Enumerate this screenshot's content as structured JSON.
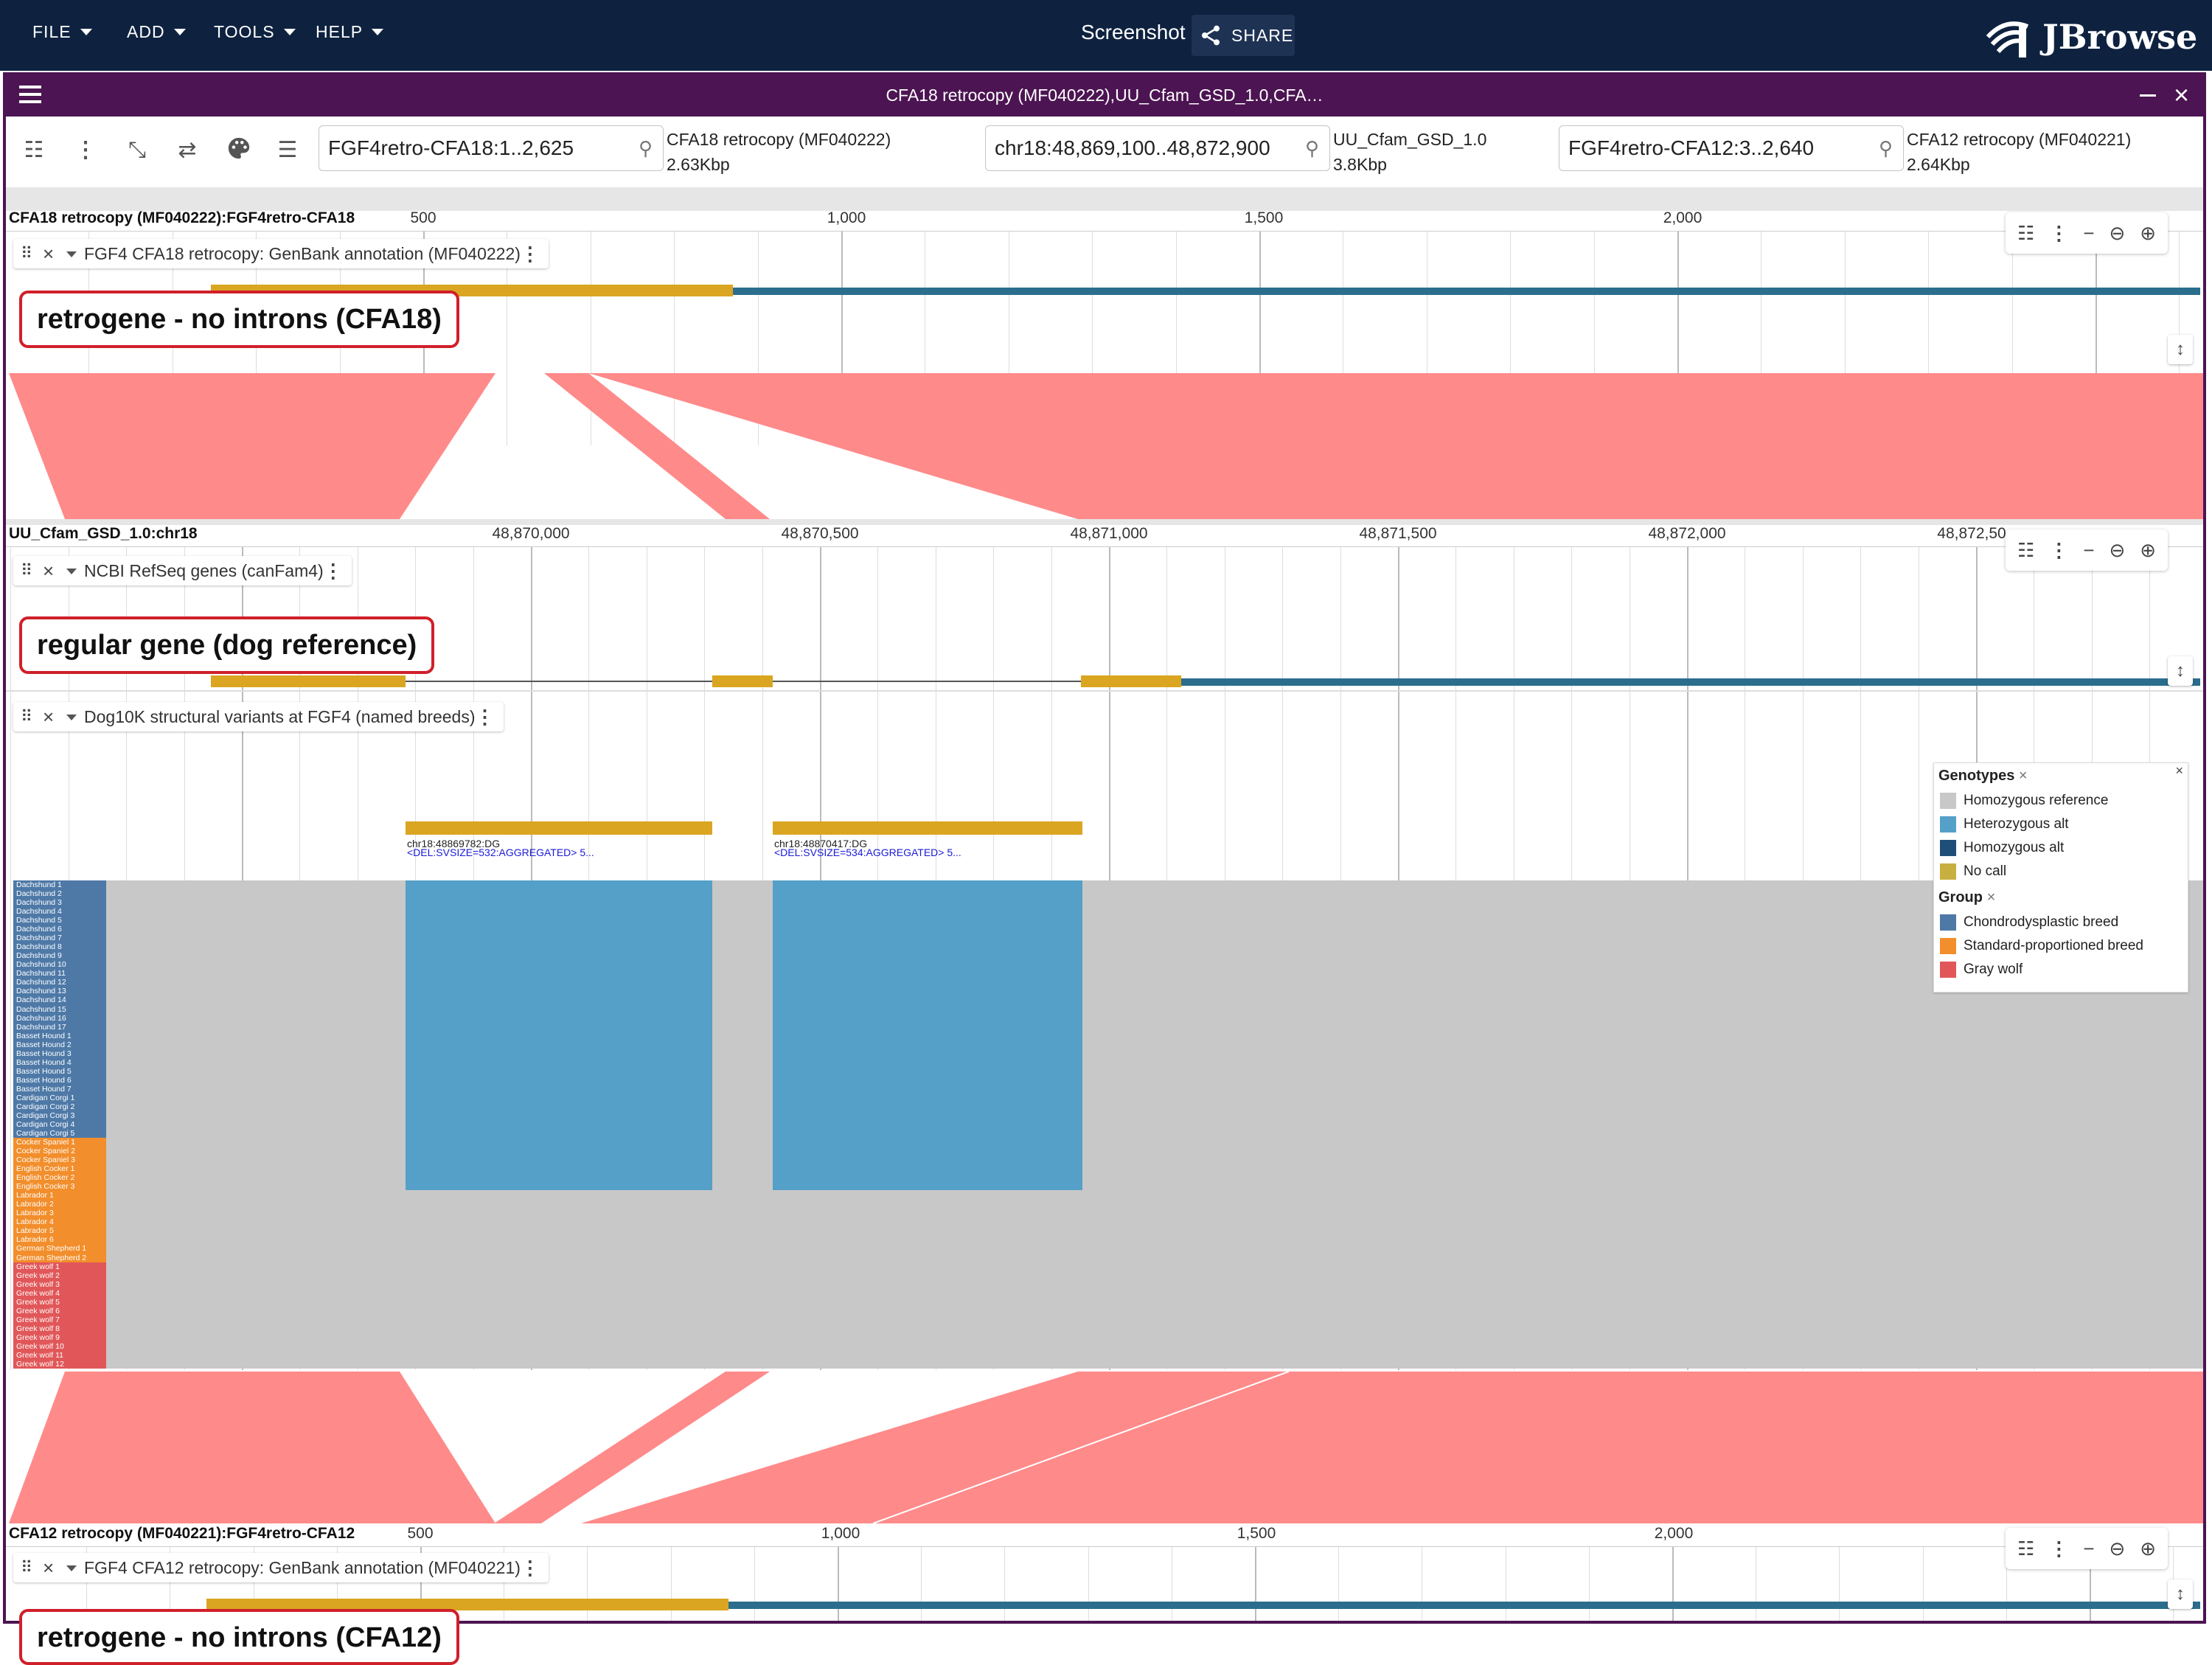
{
  "appbar": {
    "menus": [
      {
        "label": "FILE"
      },
      {
        "label": "ADD"
      },
      {
        "label": "TOOLS"
      },
      {
        "label": "HELP"
      }
    ],
    "session_title": "Screenshot",
    "share_label": "SHARE",
    "logo_text": "JBrowse"
  },
  "view": {
    "title": "CFA18 retrocopy (MF040222),UU_Cfam_GSD_1.0,CFA…",
    "locations": [
      {
        "value": "FGF4retro-CFA18:1..2,625",
        "assembly": "CFA18 retrocopy (MF040222)",
        "size": "2.63Kbp"
      },
      {
        "value": "chr18:48,869,100..48,872,900",
        "assembly": "UU_Cfam_GSD_1.0",
        "size": "3.8Kbp"
      },
      {
        "value": "FGF4retro-CFA12:3..2,640",
        "assembly": "CFA12 retrocopy (MF040221)",
        "size": "2.64Kbp"
      }
    ]
  },
  "panel1": {
    "ruler_label": "CFA18 retrocopy (MF040222):FGF4retro-CFA18",
    "ticks": [
      "500",
      "1,000",
      "1,500",
      "2,000"
    ],
    "track_label": "FGF4 CFA18 retrocopy: GenBank annotation (MF040222)",
    "callout": "retrogene - no introns (CFA18)"
  },
  "panel2": {
    "ruler_label": "UU_Cfam_GSD_1.0:chr18",
    "ticks": [
      "48,870,000",
      "48,870,500",
      "48,871,000",
      "48,871,500",
      "48,872,000",
      "48,872,50"
    ],
    "track_label": "NCBI RefSeq genes (canFam4)",
    "callout": "regular gene (dog reference)",
    "sv_track_label": "Dog10K structural variants at FGF4 (named breeds)",
    "sv_features": [
      {
        "id": "chr18:48869782:DG",
        "desc": "<DEL:SVSIZE=532:AGGREGATED> 5..."
      },
      {
        "id": "chr18:48870417:DG",
        "desc": "<DEL:SVSIZE=534:AGGREGATED> 5..."
      }
    ],
    "samples": [
      {
        "name": "Dachshund 1",
        "group": "chondro"
      },
      {
        "name": "Dachshund 2",
        "group": "chondro"
      },
      {
        "name": "Dachshund 3",
        "group": "chondro"
      },
      {
        "name": "Dachshund 4",
        "group": "chondro"
      },
      {
        "name": "Dachshund 5",
        "group": "chondro"
      },
      {
        "name": "Dachshund 6",
        "group": "chondro"
      },
      {
        "name": "Dachshund 7",
        "group": "chondro"
      },
      {
        "name": "Dachshund 8",
        "group": "chondro"
      },
      {
        "name": "Dachshund 9",
        "group": "chondro"
      },
      {
        "name": "Dachshund 10",
        "group": "chondro"
      },
      {
        "name": "Dachshund 11",
        "group": "chondro"
      },
      {
        "name": "Dachshund 12",
        "group": "chondro"
      },
      {
        "name": "Dachshund 13",
        "group": "chondro"
      },
      {
        "name": "Dachshund 14",
        "group": "chondro"
      },
      {
        "name": "Dachshund 15",
        "group": "chondro"
      },
      {
        "name": "Dachshund 16",
        "group": "chondro"
      },
      {
        "name": "Dachshund 17",
        "group": "chondro"
      },
      {
        "name": "Basset Hound 1",
        "group": "chondro"
      },
      {
        "name": "Basset Hound 2",
        "group": "chondro"
      },
      {
        "name": "Basset Hound 3",
        "group": "chondro"
      },
      {
        "name": "Basset Hound 4",
        "group": "chondro"
      },
      {
        "name": "Basset Hound 5",
        "group": "chondro"
      },
      {
        "name": "Basset Hound 6",
        "group": "chondro"
      },
      {
        "name": "Basset Hound 7",
        "group": "chondro"
      },
      {
        "name": "Cardigan Corgi 1",
        "group": "chondro"
      },
      {
        "name": "Cardigan Corgi 2",
        "group": "chondro"
      },
      {
        "name": "Cardigan Corgi 3",
        "group": "chondro"
      },
      {
        "name": "Cardigan Corgi 4",
        "group": "chondro"
      },
      {
        "name": "Cardigan Corgi 5",
        "group": "chondro"
      },
      {
        "name": "Cocker Spaniel 1",
        "group": "standard"
      },
      {
        "name": "Cocker Spaniel 2",
        "group": "standard"
      },
      {
        "name": "Cocker Spaniel 3",
        "group": "standard"
      },
      {
        "name": "English Cocker 1",
        "group": "standard"
      },
      {
        "name": "English Cocker 2",
        "group": "standard"
      },
      {
        "name": "English Cocker 3",
        "group": "standard"
      },
      {
        "name": "Labrador 1",
        "group": "standard"
      },
      {
        "name": "Labrador 2",
        "group": "standard"
      },
      {
        "name": "Labrador 3",
        "group": "standard"
      },
      {
        "name": "Labrador 4",
        "group": "standard"
      },
      {
        "name": "Labrador 5",
        "group": "standard"
      },
      {
        "name": "Labrador 6",
        "group": "standard"
      },
      {
        "name": "German Shepherd 1",
        "group": "standard"
      },
      {
        "name": "German Shepherd 2",
        "group": "standard"
      },
      {
        "name": "Greek wolf 1",
        "group": "wolf"
      },
      {
        "name": "Greek wolf 2",
        "group": "wolf"
      },
      {
        "name": "Greek wolf 3",
        "group": "wolf"
      },
      {
        "name": "Greek wolf 4",
        "group": "wolf"
      },
      {
        "name": "Greek wolf 5",
        "group": "wolf"
      },
      {
        "name": "Greek wolf 6",
        "group": "wolf"
      },
      {
        "name": "Greek wolf 7",
        "group": "wolf"
      },
      {
        "name": "Greek wolf 8",
        "group": "wolf"
      },
      {
        "name": "Greek wolf 9",
        "group": "wolf"
      },
      {
        "name": "Greek wolf 10",
        "group": "wolf"
      },
      {
        "name": "Greek wolf 11",
        "group": "wolf"
      },
      {
        "name": "Greek wolf 12",
        "group": "wolf"
      }
    ],
    "legend": {
      "genotypes_title": "Genotypes",
      "genotypes": [
        {
          "label": "Homozygous reference",
          "color": "#c8c8c8"
        },
        {
          "label": "Heterozygous alt",
          "color": "#55a0c8"
        },
        {
          "label": "Homozygous alt",
          "color": "#1f4e79"
        },
        {
          "label": "No call",
          "color": "#c8b040"
        }
      ],
      "group_title": "Group",
      "groups": [
        {
          "label": "Chondrodysplastic breed",
          "color": "#4e79a7"
        },
        {
          "label": "Standard-proportioned breed",
          "color": "#f28e2b"
        },
        {
          "label": "Gray wolf",
          "color": "#e15759"
        }
      ]
    }
  },
  "panel3": {
    "ruler_label": "CFA12 retrocopy (MF040221):FGF4retro-CFA12",
    "ticks": [
      "500",
      "1,000",
      "1,500",
      "2,000"
    ],
    "track_label": "FGF4 CFA12 retrocopy: GenBank annotation (MF040221)",
    "callout": "retrogene - no introns (CFA12)"
  },
  "colors": {
    "appbar": "#0e2240",
    "view_header": "#4c1452",
    "cds": "#daa520",
    "utr": "#2b6d8d",
    "synteny": "#ff8a8a",
    "callout_border": "#d0202a"
  }
}
